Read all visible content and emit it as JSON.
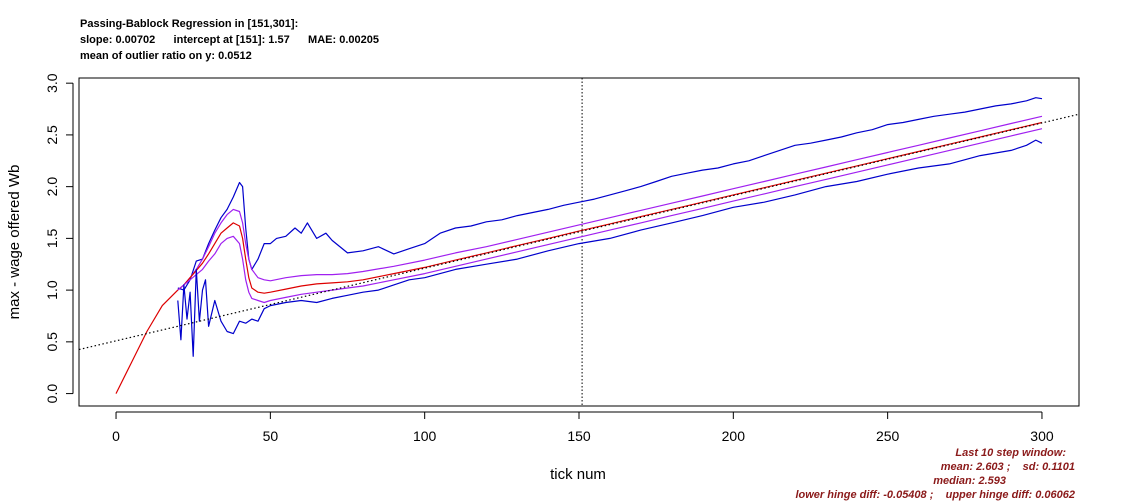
{
  "header": {
    "line1": "Passing-Bablock Regression in [151,301]:",
    "line2": "slope: 0.00702      intercept at [151]: 1.57      MAE: 0.00205",
    "line3": "mean of outlier ratio on y: 0.0512"
  },
  "stats": {
    "line1": "Last 10 step window:",
    "line2": "mean: 2.603 ;    sd: 0.1101",
    "line3": "median: 2.593",
    "line4": "lower hinge diff: -0.05408 ;    upper hinge diff: 0.06062",
    "color": "#8b1a1a"
  },
  "chart_data": {
    "type": "line",
    "title": "",
    "xlabel": "tick num",
    "ylabel": "max - wage offered Wb",
    "xlim": [
      -12,
      312
    ],
    "ylim": [
      -0.12,
      3.05
    ],
    "xticks": [
      0,
      50,
      100,
      150,
      200,
      250,
      300
    ],
    "yticks": [
      0.0,
      0.5,
      1.0,
      1.5,
      2.0,
      2.5,
      3.0
    ],
    "xtick_labels": [
      "0",
      "50",
      "100",
      "150",
      "200",
      "250",
      "300"
    ],
    "ytick_labels": [
      "0.0",
      "0.5",
      "1.0",
      "1.5",
      "2.0",
      "2.5",
      "3.0"
    ],
    "vline_x": 151,
    "grid": false,
    "legend": "none",
    "regression": {
      "slope": 0.00702,
      "anchor_x": 151,
      "anchor_y": 1.57,
      "color": "#000000",
      "style": "dotted"
    },
    "series": [
      {
        "role": "upper-envelope",
        "color": "#0000cc",
        "x": [
          20,
          22,
          24,
          26,
          28,
          30,
          32,
          34,
          36,
          38,
          40,
          41,
          42,
          43,
          44,
          46,
          48,
          50,
          52,
          55,
          58,
          60,
          62,
          65,
          68,
          70,
          75,
          80,
          85,
          90,
          95,
          100,
          105,
          110,
          115,
          120,
          125,
          130,
          135,
          140,
          145,
          150,
          155,
          160,
          165,
          170,
          175,
          180,
          185,
          190,
          195,
          200,
          205,
          210,
          215,
          220,
          225,
          230,
          235,
          240,
          245,
          250,
          255,
          260,
          265,
          270,
          275,
          280,
          285,
          290,
          295,
          298,
          300
        ],
        "y": [
          1.02,
          1.0,
          1.1,
          1.28,
          1.3,
          1.45,
          1.58,
          1.7,
          1.78,
          1.9,
          2.04,
          2.0,
          1.6,
          1.3,
          1.2,
          1.3,
          1.45,
          1.45,
          1.5,
          1.52,
          1.6,
          1.55,
          1.65,
          1.5,
          1.55,
          1.48,
          1.36,
          1.38,
          1.42,
          1.35,
          1.4,
          1.45,
          1.55,
          1.6,
          1.62,
          1.66,
          1.68,
          1.72,
          1.75,
          1.78,
          1.82,
          1.85,
          1.88,
          1.92,
          1.96,
          2.0,
          2.05,
          2.1,
          2.13,
          2.16,
          2.18,
          2.22,
          2.25,
          2.3,
          2.35,
          2.4,
          2.42,
          2.45,
          2.48,
          2.52,
          2.55,
          2.6,
          2.62,
          2.65,
          2.68,
          2.7,
          2.72,
          2.75,
          2.78,
          2.8,
          2.83,
          2.86,
          2.85
        ]
      },
      {
        "role": "upper-band",
        "color": "#a020f0",
        "x": [
          20,
          22,
          24,
          26,
          28,
          30,
          32,
          34,
          36,
          38,
          40,
          41,
          42,
          43,
          44,
          46,
          48,
          50,
          55,
          60,
          65,
          70,
          75,
          80,
          90,
          100,
          110,
          120,
          130,
          140,
          150,
          160,
          170,
          180,
          190,
          200,
          210,
          220,
          230,
          240,
          250,
          260,
          270,
          280,
          290,
          300
        ],
        "y": [
          1.0,
          1.05,
          1.12,
          1.2,
          1.3,
          1.42,
          1.55,
          1.65,
          1.73,
          1.78,
          1.76,
          1.65,
          1.45,
          1.3,
          1.2,
          1.12,
          1.1,
          1.09,
          1.12,
          1.14,
          1.15,
          1.15,
          1.16,
          1.18,
          1.23,
          1.29,
          1.36,
          1.42,
          1.49,
          1.56,
          1.63,
          1.7,
          1.77,
          1.84,
          1.91,
          1.98,
          2.05,
          2.12,
          2.19,
          2.26,
          2.33,
          2.4,
          2.47,
          2.54,
          2.61,
          2.68
        ]
      },
      {
        "role": "median",
        "color": "#dd0000",
        "x": [
          0,
          5,
          10,
          15,
          20,
          22,
          24,
          26,
          28,
          30,
          32,
          34,
          36,
          38,
          40,
          41,
          42,
          43,
          44,
          46,
          48,
          50,
          55,
          60,
          65,
          70,
          75,
          80,
          90,
          100,
          110,
          120,
          130,
          140,
          150,
          160,
          170,
          180,
          190,
          200,
          210,
          220,
          230,
          240,
          250,
          260,
          270,
          280,
          290,
          300
        ],
        "y": [
          0.0,
          0.3,
          0.6,
          0.85,
          1.0,
          1.05,
          1.12,
          1.19,
          1.26,
          1.35,
          1.45,
          1.55,
          1.6,
          1.65,
          1.62,
          1.5,
          1.3,
          1.12,
          1.02,
          0.98,
          0.97,
          0.98,
          1.01,
          1.04,
          1.06,
          1.07,
          1.08,
          1.1,
          1.16,
          1.22,
          1.29,
          1.36,
          1.43,
          1.5,
          1.57,
          1.64,
          1.71,
          1.78,
          1.85,
          1.92,
          1.99,
          2.06,
          2.13,
          2.2,
          2.27,
          2.34,
          2.41,
          2.48,
          2.55,
          2.62
        ]
      },
      {
        "role": "lower-band",
        "color": "#a020f0",
        "x": [
          20,
          22,
          24,
          26,
          28,
          30,
          32,
          34,
          36,
          38,
          40,
          41,
          42,
          43,
          44,
          46,
          48,
          50,
          55,
          60,
          65,
          70,
          75,
          80,
          90,
          100,
          110,
          120,
          130,
          140,
          150,
          160,
          170,
          180,
          190,
          200,
          210,
          220,
          230,
          240,
          250,
          260,
          270,
          280,
          290,
          300
        ],
        "y": [
          1.0,
          1.05,
          1.1,
          1.15,
          1.2,
          1.28,
          1.35,
          1.45,
          1.5,
          1.52,
          1.45,
          1.3,
          1.1,
          0.98,
          0.92,
          0.9,
          0.88,
          0.9,
          0.93,
          0.96,
          0.98,
          1.0,
          1.02,
          1.04,
          1.1,
          1.16,
          1.23,
          1.3,
          1.37,
          1.44,
          1.51,
          1.58,
          1.65,
          1.72,
          1.79,
          1.86,
          1.93,
          2.0,
          2.07,
          2.14,
          2.21,
          2.28,
          2.35,
          2.42,
          2.49,
          2.56
        ]
      },
      {
        "role": "lower-envelope",
        "color": "#0000cc",
        "x": [
          20,
          21,
          22,
          23,
          24,
          25,
          26,
          27,
          28,
          29,
          30,
          32,
          34,
          36,
          38,
          40,
          42,
          44,
          46,
          48,
          50,
          55,
          60,
          65,
          70,
          75,
          80,
          85,
          90,
          95,
          100,
          110,
          120,
          130,
          140,
          150,
          160,
          170,
          180,
          190,
          200,
          210,
          220,
          230,
          240,
          250,
          260,
          270,
          280,
          290,
          295,
          298,
          300
        ],
        "y": [
          0.9,
          0.52,
          1.05,
          0.72,
          0.98,
          0.36,
          1.2,
          0.7,
          1.0,
          1.1,
          0.65,
          0.9,
          0.7,
          0.6,
          0.58,
          0.7,
          0.68,
          0.72,
          0.7,
          0.82,
          0.85,
          0.88,
          0.9,
          0.88,
          0.92,
          0.95,
          0.98,
          1.0,
          1.05,
          1.1,
          1.12,
          1.2,
          1.25,
          1.3,
          1.38,
          1.45,
          1.5,
          1.58,
          1.65,
          1.72,
          1.8,
          1.85,
          1.92,
          2.0,
          2.05,
          2.12,
          2.18,
          2.22,
          2.3,
          2.35,
          2.4,
          2.45,
          2.42
        ]
      }
    ]
  }
}
